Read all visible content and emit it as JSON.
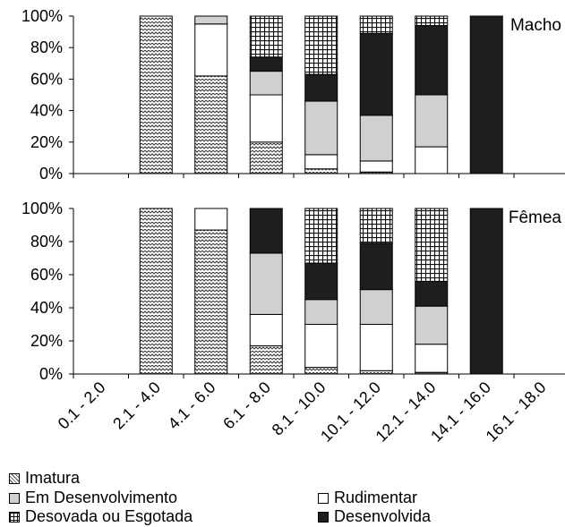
{
  "chart_data": [
    {
      "type": "bar",
      "stacked": true,
      "title": "Macho",
      "categories": [
        "0.1 - 2.0",
        "2.1 - 4.0",
        "4.1 - 6.0",
        "6.1 - 8.0",
        "8.1 - 10.0",
        "10.1 - 12.0",
        "12.1 - 14.0",
        "14.1 - 16.0",
        "16.1 - 18.0"
      ],
      "yticks": [
        "0%",
        "20%",
        "40%",
        "60%",
        "80%",
        "100%"
      ],
      "ylim": [
        0,
        100
      ],
      "series": [
        {
          "name": "Imatura",
          "values": [
            null,
            100,
            62,
            20,
            3,
            1,
            0,
            0,
            null
          ]
        },
        {
          "name": "Rudimentar",
          "values": [
            null,
            0,
            33,
            30,
            9,
            7,
            17,
            0,
            null
          ]
        },
        {
          "name": "Em Desenvolvimento",
          "values": [
            null,
            0,
            5,
            15,
            34,
            29,
            33,
            0,
            null
          ]
        },
        {
          "name": "Desenvolvida",
          "values": [
            null,
            0,
            0,
            9,
            17,
            52,
            44,
            100,
            null
          ]
        },
        {
          "name": "Desovada ou Esgotada",
          "values": [
            null,
            0,
            0,
            26,
            37,
            11,
            6,
            0,
            null
          ]
        }
      ]
    },
    {
      "type": "bar",
      "stacked": true,
      "title": "Fêmea",
      "categories": [
        "0.1 - 2.0",
        "2.1 - 4.0",
        "4.1 - 6.0",
        "6.1 - 8.0",
        "8.1 - 10.0",
        "10.1 - 12.0",
        "12.1 - 14.0",
        "14.1 - 16.0",
        "16.1 - 18.0"
      ],
      "yticks": [
        "0%",
        "20%",
        "40%",
        "60%",
        "80%",
        "100%"
      ],
      "ylim": [
        0,
        100
      ],
      "series": [
        {
          "name": "Imatura",
          "values": [
            null,
            100,
            87,
            17,
            4,
            2,
            1,
            0,
            null
          ]
        },
        {
          "name": "Rudimentar",
          "values": [
            null,
            0,
            13,
            19,
            26,
            28,
            17,
            0,
            null
          ]
        },
        {
          "name": "Em Desenvolvimento",
          "values": [
            null,
            0,
            0,
            37,
            15,
            21,
            23,
            0,
            null
          ]
        },
        {
          "name": "Desenvolvida",
          "values": [
            null,
            0,
            0,
            27,
            22,
            28,
            15,
            100,
            null
          ]
        },
        {
          "name": "Desovada ou Esgotada",
          "values": [
            null,
            0,
            0,
            0,
            33,
            21,
            44,
            0,
            null
          ]
        }
      ]
    }
  ],
  "legend": [
    {
      "name": "Imatura",
      "pattern": "zigzag"
    },
    {
      "name": "Em Desenvolvimento",
      "pattern": "gray"
    },
    {
      "name": "Rudimentar",
      "pattern": "white"
    },
    {
      "name": "Desovada ou Esgotada",
      "pattern": "grid"
    },
    {
      "name": "Desenvolvida",
      "pattern": "black"
    }
  ],
  "colors": {
    "Imatura": "#ffffff",
    "Rudimentar": "#ffffff",
    "Em Desenvolvimento": "#d0d0d0",
    "Desenvolvida": "#1e1e1e",
    "Desovada ou Esgotada": "#ffffff"
  }
}
